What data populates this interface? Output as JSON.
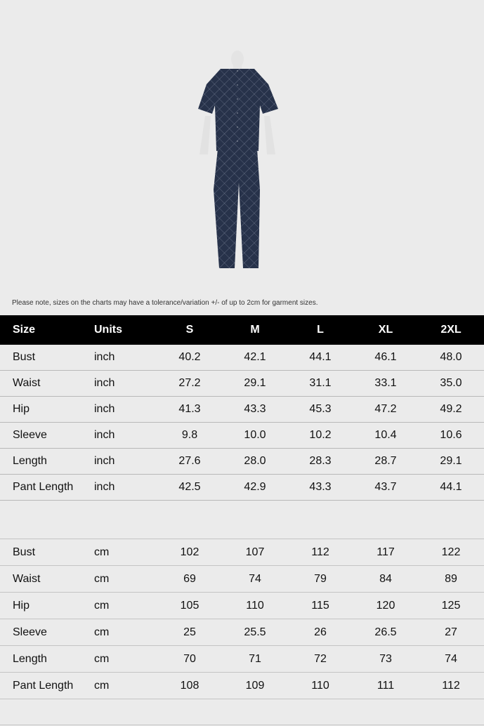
{
  "note": "Please note, sizes on the charts may have a tolerance/variation +/- of up to 2cm for garment sizes.",
  "colors": {
    "header_bg": "#000000",
    "header_text": "#ffffff",
    "background": "#ebebeb",
    "garment": "#27324a"
  },
  "header": [
    "Size",
    "Units",
    "S",
    "M",
    "L",
    "XL",
    "2XL"
  ],
  "inch_rows": [
    [
      "Bust",
      "inch",
      "40.2",
      "42.1",
      "44.1",
      "46.1",
      "48.0"
    ],
    [
      "Waist",
      "inch",
      "27.2",
      "29.1",
      "31.1",
      "33.1",
      "35.0"
    ],
    [
      "Hip",
      "inch",
      "41.3",
      "43.3",
      "45.3",
      "47.2",
      "49.2"
    ],
    [
      "Sleeve",
      "inch",
      "9.8",
      "10.0",
      "10.2",
      "10.4",
      "10.6"
    ],
    [
      "Length",
      "inch",
      "27.6",
      "28.0",
      "28.3",
      "28.7",
      "29.1"
    ],
    [
      "Pant Length",
      "inch",
      "42.5",
      "42.9",
      "43.3",
      "43.7",
      "44.1"
    ]
  ],
  "cm_rows": [
    [
      "Bust",
      "cm",
      "102",
      "107",
      "112",
      "117",
      "122"
    ],
    [
      "Waist",
      "cm",
      "69",
      "74",
      "79",
      "84",
      "89"
    ],
    [
      "Hip",
      "cm",
      "105",
      "110",
      "115",
      "120",
      "125"
    ],
    [
      "Sleeve",
      "cm",
      "25",
      "25.5",
      "26",
      "26.5",
      "27"
    ],
    [
      "Length",
      "cm",
      "70",
      "71",
      "72",
      "73",
      "74"
    ],
    [
      "Pant Length",
      "cm",
      "108",
      "109",
      "110",
      "111",
      "112"
    ]
  ]
}
